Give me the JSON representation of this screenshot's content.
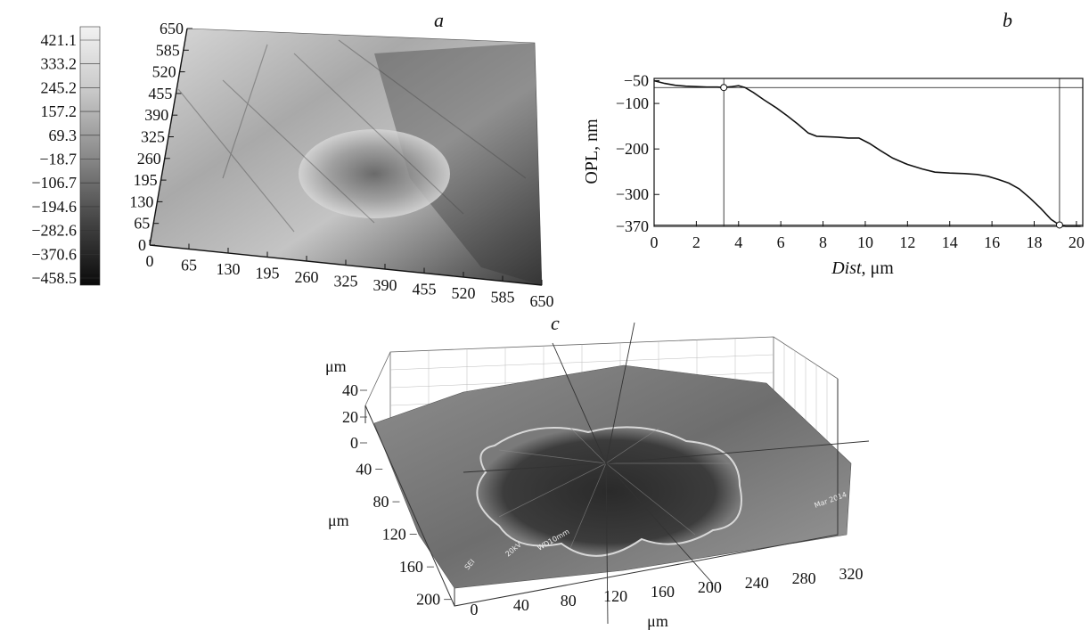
{
  "panels": {
    "a": {
      "label": "a",
      "colorbar_ticks": [
        "421.1",
        "333.2",
        "245.2",
        "157.2",
        "69.3",
        "−18.7",
        "−106.7",
        "−194.6",
        "−282.6",
        "−370.6",
        "−458.5"
      ],
      "y_ticks": [
        "650",
        "585",
        "520",
        "455",
        "390",
        "325",
        "260",
        "195",
        "130",
        "65",
        "0"
      ],
      "x_ticks": [
        "0",
        "65",
        "130",
        "195",
        "260",
        "325",
        "390",
        "455",
        "520",
        "585",
        "650"
      ]
    },
    "b": {
      "label": "b"
    },
    "c": {
      "label": "c",
      "z_axis_unit": "μm",
      "z_ticks": [
        "40",
        "20",
        "0"
      ],
      "y_axis_unit": "μm",
      "y_ticks": [
        "40",
        "80",
        "120",
        "160",
        "200"
      ],
      "x_ticks": [
        "0",
        "40",
        "80",
        "120",
        "160",
        "200",
        "240",
        "280",
        "320"
      ],
      "x_axis_unit": "μm",
      "sem_text": [
        "SEI",
        "20kV",
        "WD10mm",
        "Mar 2014"
      ]
    }
  },
  "chart_data": {
    "type": "line",
    "title": "",
    "xlabel_italic": "Dist",
    "xlabel_unit": ", μm",
    "ylabel": "OPL, nm",
    "xlim": [
      0,
      20.3
    ],
    "ylim": [
      -370,
      -45
    ],
    "x_ticks": [
      "0",
      "2",
      "4",
      "6",
      "8",
      "10",
      "12",
      "14",
      "16",
      "18",
      "20"
    ],
    "y_ticks": [
      "−50",
      "−100",
      "−200",
      "−300",
      "−370"
    ],
    "y_tick_values": [
      -50,
      -100,
      -200,
      -300,
      -370
    ],
    "x_tick_values": [
      0,
      2,
      4,
      6,
      8,
      10,
      12,
      14,
      16,
      18,
      20
    ],
    "series": [
      {
        "x": [
          0,
          0.5,
          1,
          1.5,
          2,
          2.5,
          3,
          3.3,
          3.7,
          4.0,
          4.3,
          4.7,
          5.2,
          5.8,
          6.3,
          6.8,
          7.3,
          7.7,
          8.2,
          8.7,
          9.2,
          9.7,
          10.2,
          10.7,
          11.3,
          12,
          12.7,
          13.3,
          14,
          14.7,
          15.3,
          15.8,
          16.3,
          16.8,
          17.3,
          17.8,
          18.3,
          18.8,
          19.2,
          19.5,
          20.2
        ],
        "y": [
          -50,
          -56,
          -60,
          -62,
          -63,
          -64,
          -64,
          -65,
          -63,
          -61,
          -65,
          -76,
          -92,
          -110,
          -127,
          -145,
          -165,
          -172,
          -173,
          -174,
          -176,
          -176,
          -188,
          -203,
          -220,
          -234,
          -244,
          -251,
          -253,
          -254,
          -256,
          -260,
          -267,
          -275,
          -288,
          -308,
          -330,
          -355,
          -367,
          -372,
          -370
        ]
      }
    ],
    "cursor_markers": [
      {
        "x": 3.3,
        "y": -65
      },
      {
        "x": 19.2,
        "y": -367
      }
    ]
  }
}
